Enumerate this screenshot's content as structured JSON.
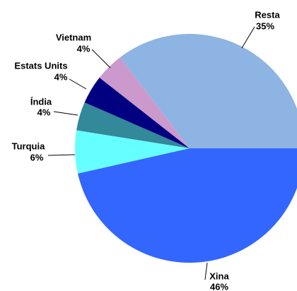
{
  "chart_data": {
    "type": "pie",
    "categories": [
      "Xina",
      "Turquia",
      "Índia",
      "Estats Units",
      "Vietnam",
      "Resta"
    ],
    "values": [
      46,
      6,
      4,
      4,
      4,
      35
    ],
    "value_labels": [
      "46%",
      "6%",
      "4%",
      "4%",
      "4%",
      "35%"
    ],
    "colors": [
      "#3366ff",
      "#66ffff",
      "#338899",
      "#000080",
      "#cc99cc",
      "#8db4e2"
    ]
  }
}
